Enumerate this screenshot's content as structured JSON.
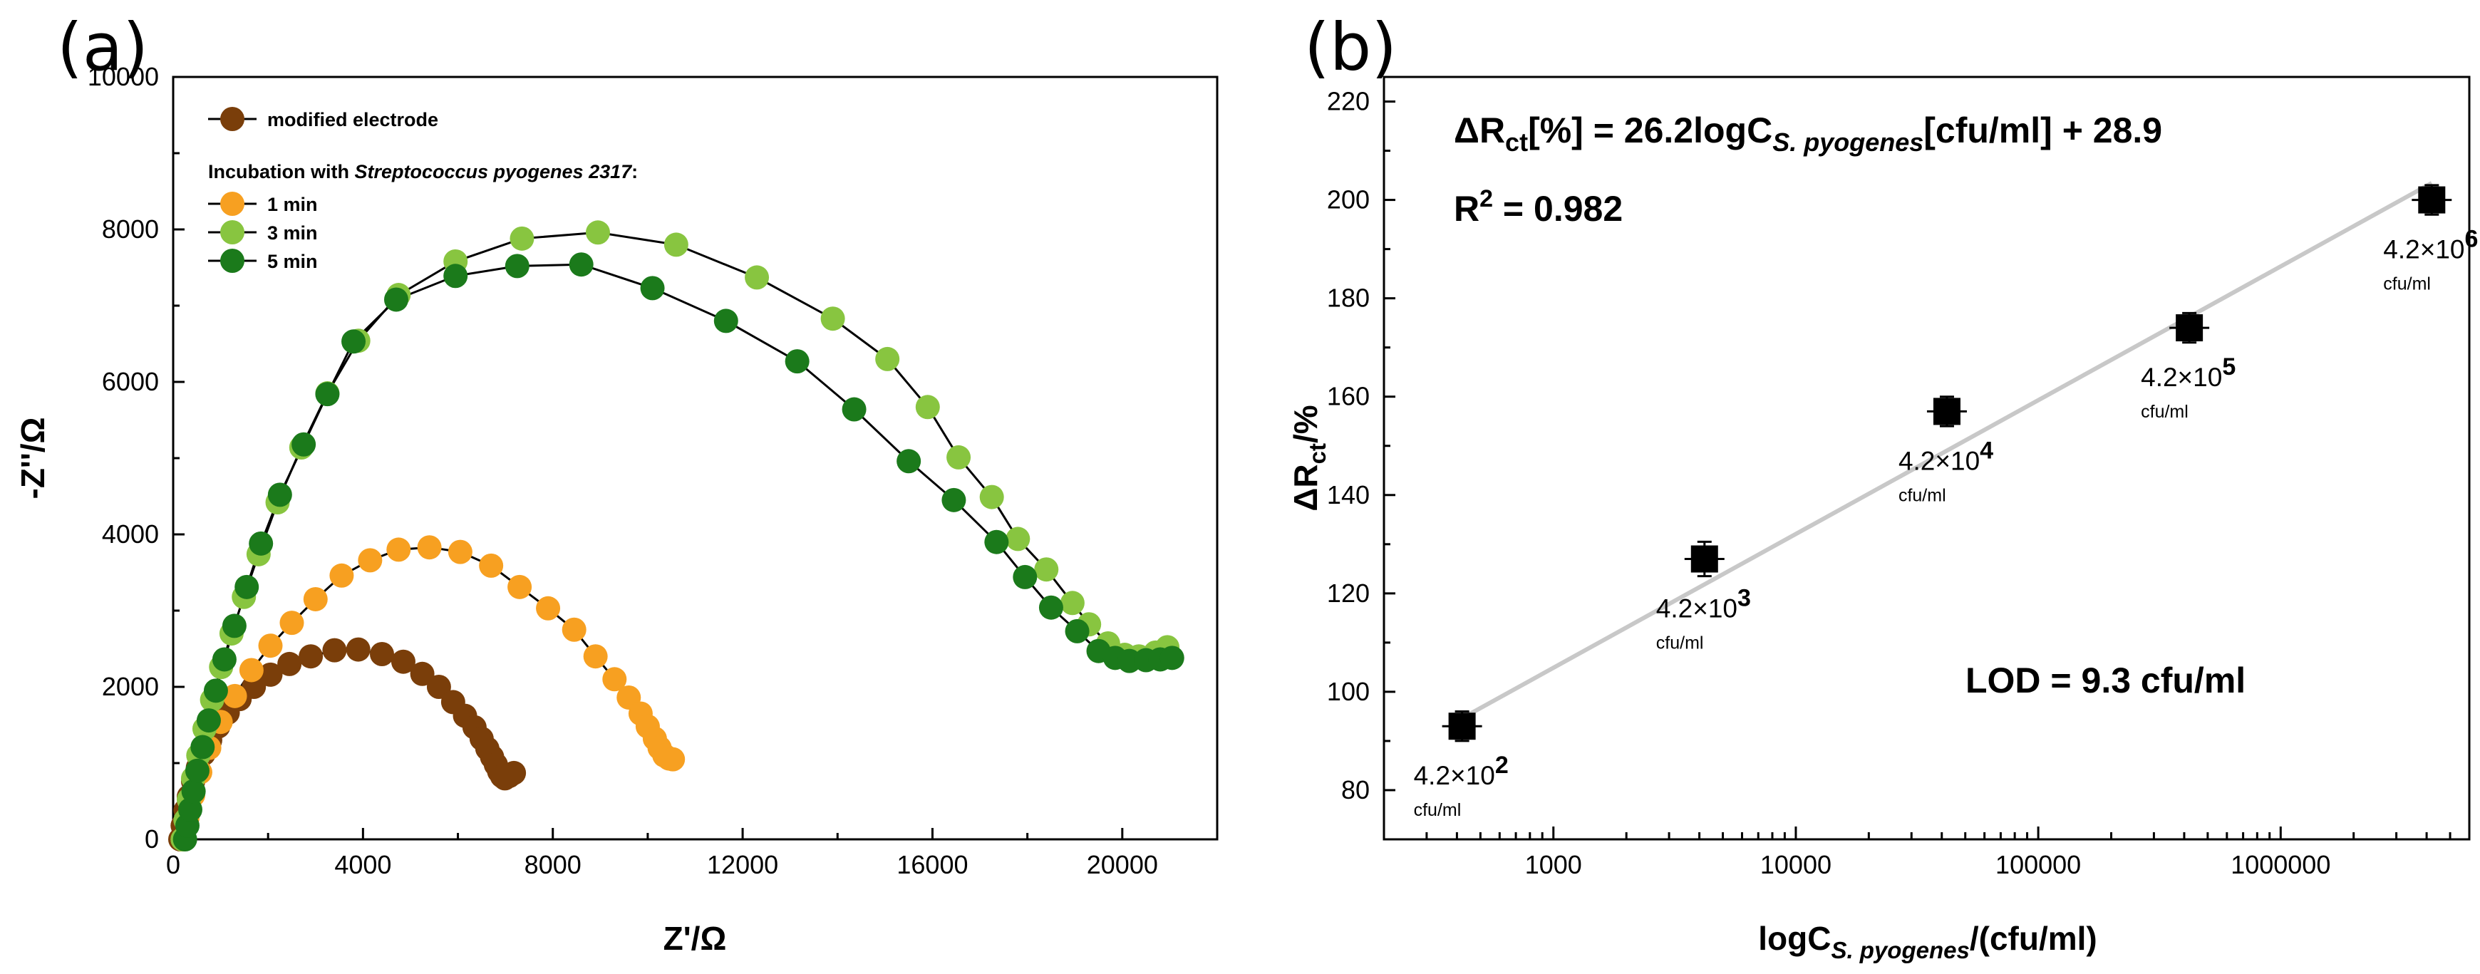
{
  "chart_data": [
    {
      "panel": "(a)",
      "type": "scatter",
      "xlabel": "Z'/Ω",
      "ylabel": "-Z''/Ω",
      "xlim": [
        0,
        22000
      ],
      "ylim": [
        0,
        10000
      ],
      "xticks": [
        "0",
        "4000",
        "8000",
        "12000",
        "16000",
        "20000"
      ],
      "yticks": [
        "0",
        "2000",
        "4000",
        "6000",
        "8000",
        "10000"
      ],
      "legend_title": "Incubation with Streptococcus pyogenes 2317:",
      "legend_title_parts": [
        "Incubation with ",
        "Streptococcus pyogenes 2317",
        ":"
      ],
      "fit_lines": true,
      "series": [
        {
          "name": "modified electrode",
          "color": "#7a3e0a",
          "x": [
            150,
            200,
            260,
            330,
            420,
            520,
            640,
            780,
            950,
            1150,
            1400,
            1700,
            2050,
            2450,
            2900,
            3400,
            3900,
            4400,
            4850,
            5250,
            5600,
            5900,
            6150,
            6350,
            6500,
            6620,
            6720,
            6800,
            6870,
            6930,
            6990,
            7080,
            7180
          ],
          "y": [
            0,
            180,
            380,
            560,
            760,
            940,
            1120,
            1300,
            1480,
            1660,
            1840,
            2000,
            2160,
            2300,
            2400,
            2480,
            2490,
            2430,
            2330,
            2170,
            2000,
            1800,
            1620,
            1470,
            1320,
            1190,
            1080,
            980,
            890,
            830,
            800,
            830,
            870
          ]
        },
        {
          "name": "1 min",
          "color": "#f7a021",
          "x": [
            200,
            300,
            420,
            570,
            760,
            1000,
            1300,
            1650,
            2050,
            2500,
            3000,
            3550,
            4150,
            4750,
            5400,
            6050,
            6700,
            7300,
            7900,
            8450,
            8900,
            9300,
            9600,
            9850,
            10000,
            10150,
            10250,
            10350,
            10450,
            10530
          ],
          "y": [
            0,
            280,
            580,
            880,
            1200,
            1540,
            1880,
            2220,
            2540,
            2840,
            3150,
            3460,
            3660,
            3800,
            3830,
            3770,
            3590,
            3310,
            3030,
            2750,
            2400,
            2100,
            1860,
            1650,
            1480,
            1320,
            1200,
            1100,
            1060,
            1050
          ]
        },
        {
          "name": "3 min",
          "color": "#88c540",
          "x": [
            200,
            260,
            330,
            420,
            530,
            660,
            820,
            1010,
            1230,
            1490,
            1800,
            2200,
            2700,
            3250,
            3900,
            4750,
            5950,
            7350,
            8950,
            10600,
            12300,
            13900,
            15050,
            15900,
            16550,
            17250,
            17800,
            18400,
            18950,
            19300,
            19700,
            20050,
            20350,
            20700,
            20950
          ],
          "y": [
            0,
            250,
            520,
            800,
            1100,
            1450,
            1830,
            2260,
            2700,
            3180,
            3740,
            4420,
            5140,
            5850,
            6540,
            7140,
            7580,
            7880,
            7960,
            7800,
            7370,
            6830,
            6300,
            5670,
            5010,
            4490,
            3940,
            3540,
            3100,
            2820,
            2570,
            2420,
            2400,
            2450,
            2520
          ]
        },
        {
          "name": "5 min",
          "color": "#1b7a1b",
          "x": [
            250,
            300,
            360,
            430,
            510,
            620,
            750,
            900,
            1080,
            1290,
            1550,
            1850,
            2250,
            2750,
            3250,
            3800,
            4700,
            5950,
            7250,
            8600,
            10100,
            11650,
            13150,
            14350,
            15500,
            16450,
            17350,
            17950,
            18500,
            19050,
            19500,
            19850,
            20150,
            20500,
            20800,
            21050
          ],
          "y": [
            0,
            180,
            390,
            630,
            900,
            1210,
            1560,
            1950,
            2360,
            2800,
            3310,
            3880,
            4520,
            5180,
            5840,
            6530,
            7080,
            7390,
            7520,
            7540,
            7230,
            6800,
            6270,
            5640,
            4960,
            4450,
            3900,
            3440,
            3040,
            2730,
            2470,
            2380,
            2340,
            2350,
            2360,
            2380
          ]
        }
      ]
    },
    {
      "panel": "(b)",
      "type": "scatter",
      "xscale": "log",
      "xlabel_parts": [
        "logC",
        "S. pyogenes",
        "/(cfu/ml)"
      ],
      "ylabel_parts": [
        "ΔR",
        "ct",
        "/%"
      ],
      "xlim": [
        200,
        6000000
      ],
      "ylim": [
        70,
        225
      ],
      "xticks": [
        "1000",
        "10000",
        "100000",
        "1000000"
      ],
      "yticks": [
        "80",
        "100",
        "120",
        "140",
        "160",
        "180",
        "200",
        "220"
      ],
      "marker_color": "#000000",
      "fit_color": "#c8c8c8",
      "fit_line": {
        "slope": 26.2,
        "intercept": 28.9,
        "x_range": [
          420,
          4200000
        ]
      },
      "points": [
        {
          "x": 420,
          "y": 93,
          "yerr": 3,
          "base": "4.2×10",
          "exp": "2",
          "unit": "cfu/ml"
        },
        {
          "x": 4200,
          "y": 127,
          "yerr": 3.5,
          "base": "4.2×10",
          "exp": "3",
          "unit": "cfu/ml"
        },
        {
          "x": 42000,
          "y": 157,
          "yerr": 3,
          "base": "4.2×10",
          "exp": "4",
          "unit": "cfu/ml"
        },
        {
          "x": 420000,
          "y": 174,
          "yerr": 3,
          "base": "4.2×10",
          "exp": "5",
          "unit": "cfu/ml"
        },
        {
          "x": 4200000,
          "y": 200,
          "yerr": 3,
          "base": "4.2×10",
          "exp": "6",
          "unit": "cfu/ml"
        }
      ],
      "equation_parts": [
        "ΔR",
        "ct",
        "[%] = 26.2logC",
        "S. pyogenes",
        "[cfu/ml] + 28.9"
      ],
      "r2_parts": [
        "R",
        "2",
        " = 0.982"
      ],
      "lod_text": "LOD = 9.3 cfu/ml"
    }
  ]
}
